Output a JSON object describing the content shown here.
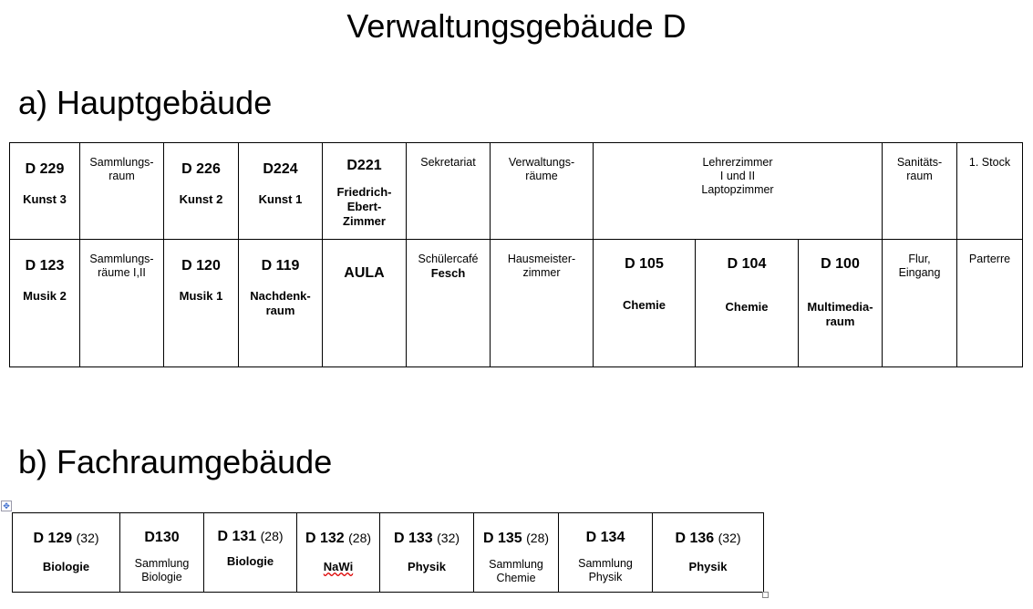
{
  "title": "Verwaltungsgebäude D",
  "section_a": "a) Hauptgebäude",
  "section_b": "b) Fachraumgebäude",
  "main_building": {
    "row1": [
      {
        "id": "D 229",
        "name": "Kunst 3"
      },
      {
        "text": "Sammlungs-\nraum"
      },
      {
        "id": "D 226",
        "name": "Kunst 2"
      },
      {
        "id": "D224",
        "name": "Kunst 1"
      },
      {
        "id": "D221",
        "name": "Friedrich-\nEbert-\nZimmer"
      },
      {
        "text": "Sekretariat"
      },
      {
        "text": "Verwaltungs-\nräume"
      },
      {
        "text": "Lehrerzimmer\nI und II\nLaptopzimmer"
      },
      {
        "text": "Sanitäts-\nraum"
      },
      {
        "text": "1. Stock"
      }
    ],
    "row2": [
      {
        "id": "D 123",
        "name": "Musik 2"
      },
      {
        "text": "Sammlungs-\nräume I,II"
      },
      {
        "id": "D 120",
        "name": "Musik 1"
      },
      {
        "id": "D 119",
        "name": "Nachdenk-\nraum"
      },
      {
        "id": "AULA"
      },
      {
        "text": "Schülercafé",
        "name2": "Fesch"
      },
      {
        "text": "Hausmeister-\nzimmer"
      },
      {
        "id": "D 105",
        "name": "Chemie"
      },
      {
        "id": "D 104",
        "name": "Chemie"
      },
      {
        "id": "D 100",
        "name": "Multimedia-\nraum"
      },
      {
        "text": "Flur,\nEingang"
      },
      {
        "text": "Parterre"
      }
    ]
  },
  "specialist_building": [
    {
      "id": "D 129",
      "cap": "(32)",
      "name": "Biologie"
    },
    {
      "id": "D130",
      "text": "Sammlung\nBiologie"
    },
    {
      "id": "D 131",
      "cap": "(28)",
      "name": "Biologie"
    },
    {
      "id": "D 132",
      "cap": "(28)",
      "name": "NaWi"
    },
    {
      "id": "D 133",
      "cap": "(32)",
      "name": "Physik"
    },
    {
      "id": "D 135",
      "cap": "(28)",
      "text": "Sammlung\nChemie"
    },
    {
      "id": "D 134",
      "text": "Sammlung\nPhysik"
    },
    {
      "id": "D 136",
      "cap": "(32)",
      "name": "Physik"
    }
  ]
}
